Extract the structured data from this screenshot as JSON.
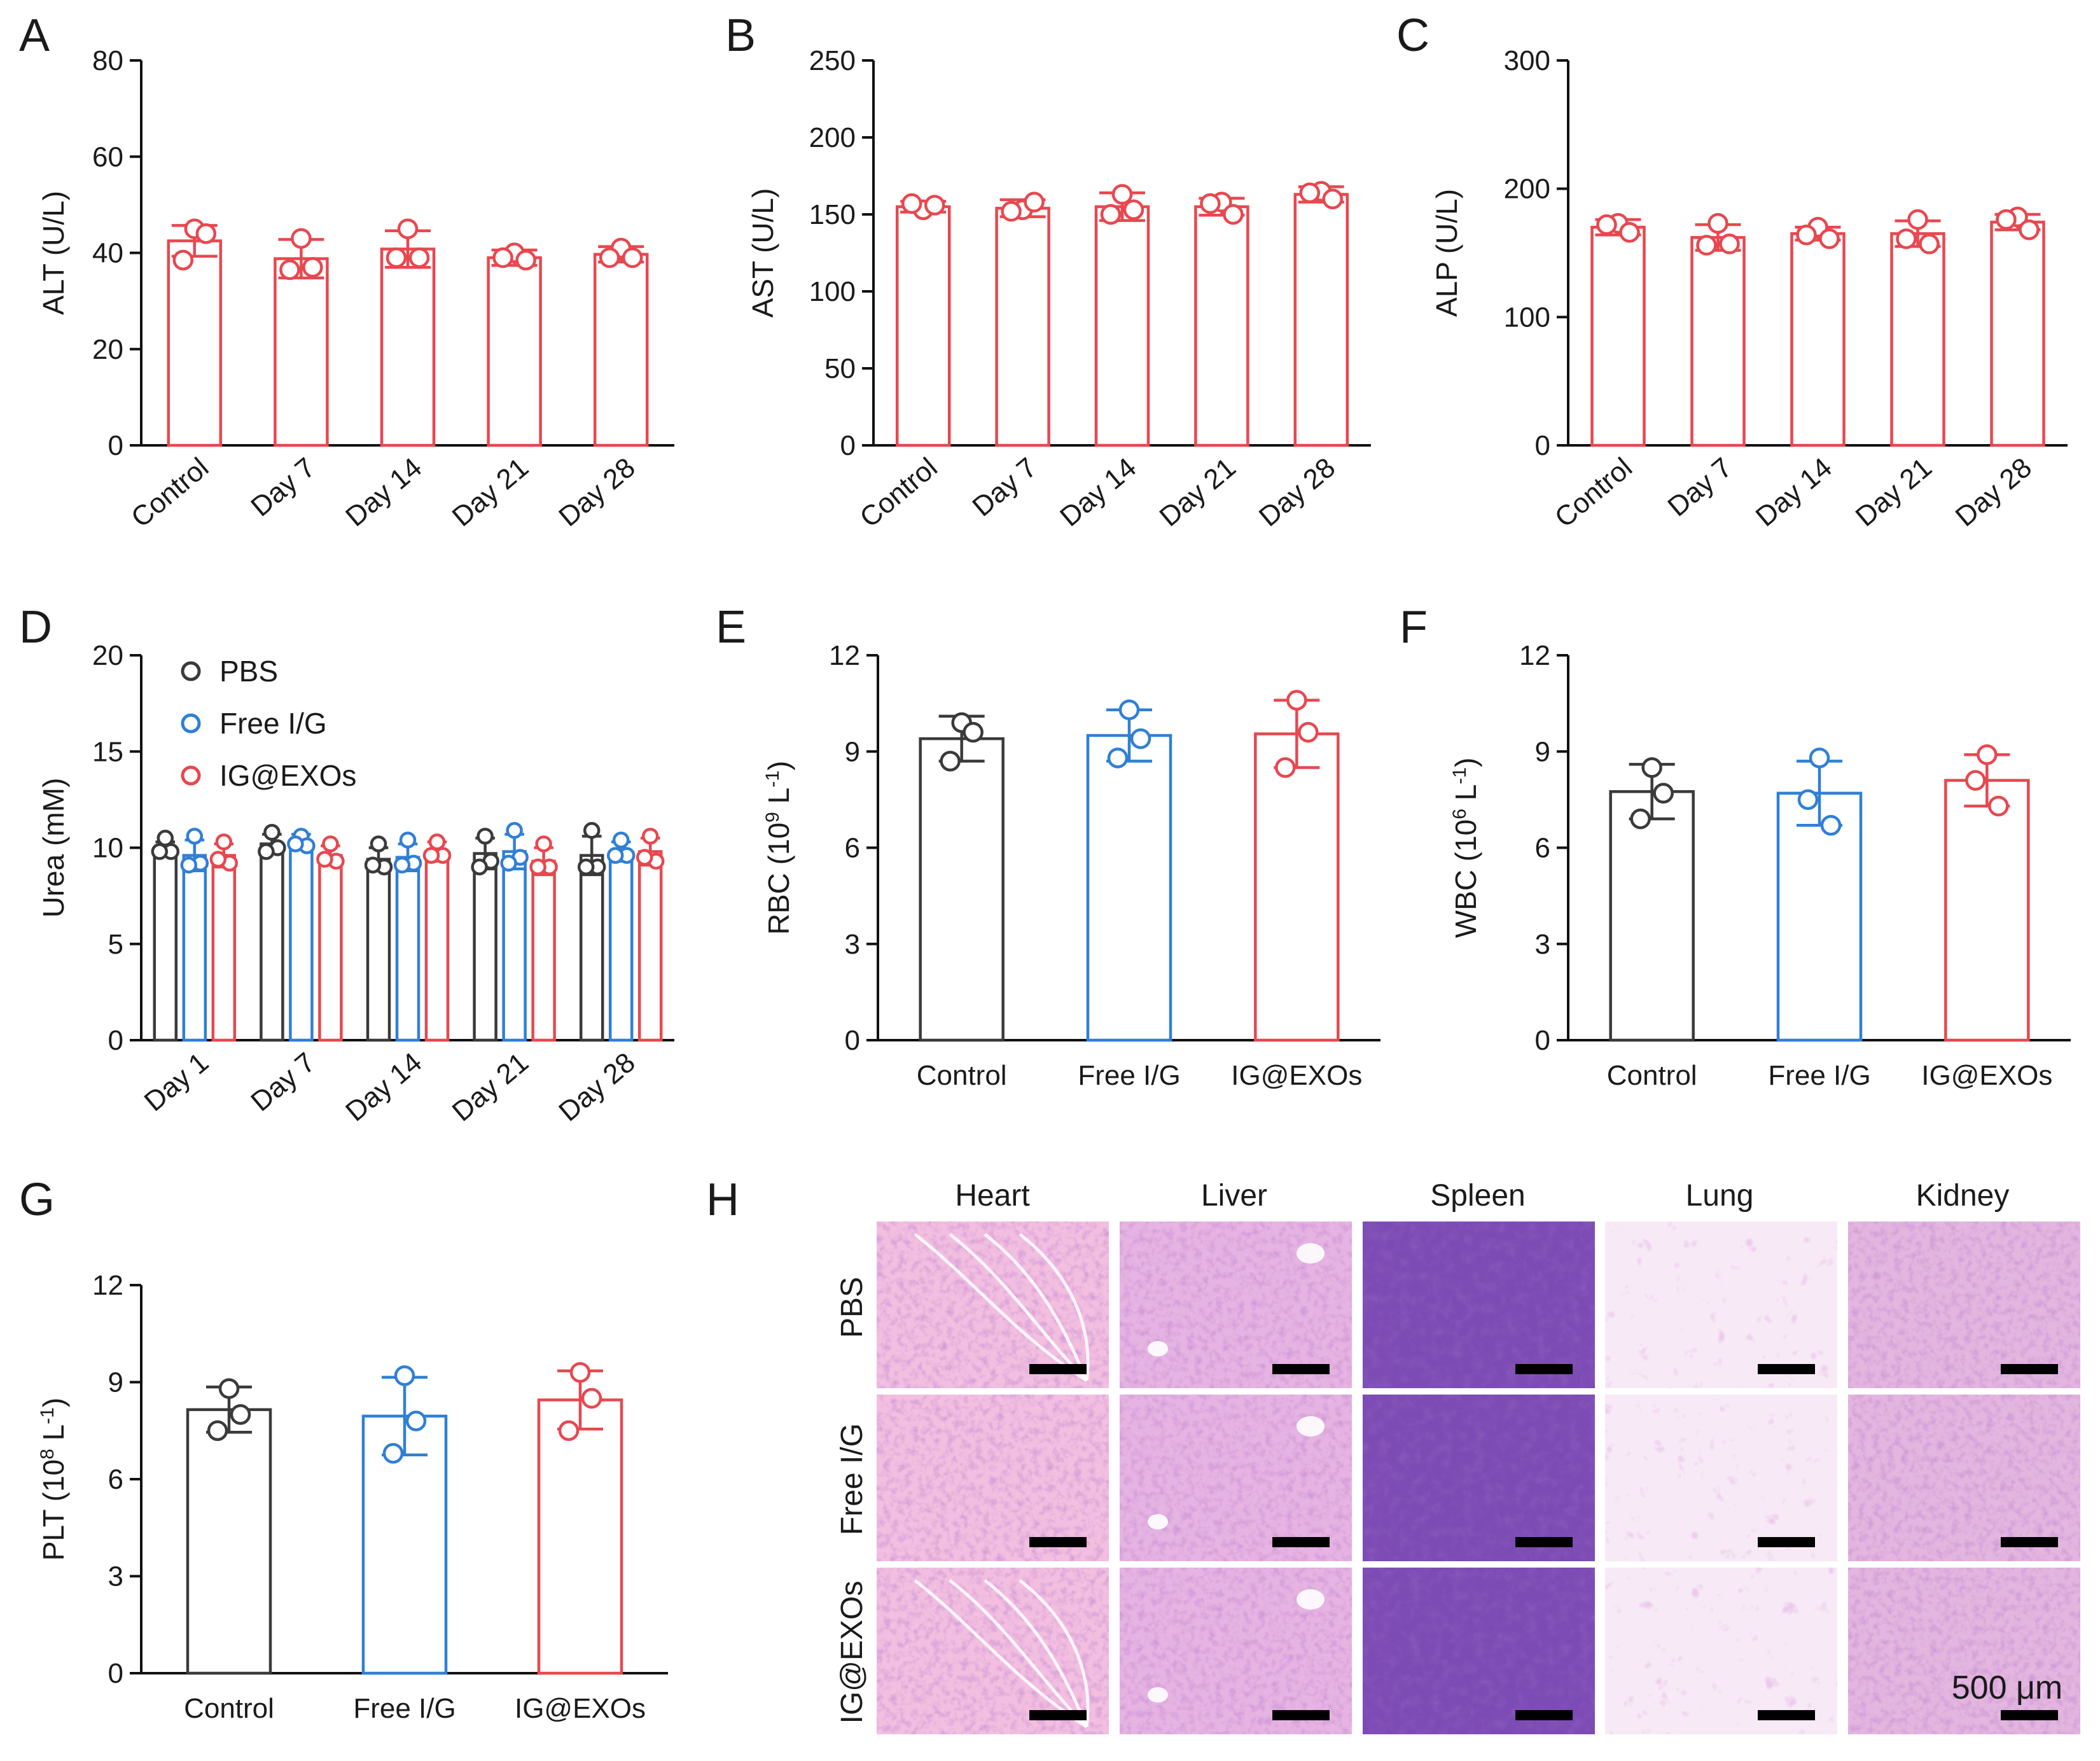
{
  "colors": {
    "black": "#3a3a3a",
    "blue": "#2f7fd6",
    "red": "#e8474f"
  },
  "chart_data": [
    {
      "panel": "A",
      "type": "bar",
      "ylabel": "ALT (U/L)",
      "ylim": [
        0,
        80
      ],
      "yticks": [
        0,
        20,
        40,
        60,
        80
      ],
      "categories": [
        "Control",
        "Day 7",
        "Day 14",
        "Day 21",
        "Day 28"
      ],
      "color": "red",
      "values": [
        42.5,
        38.8,
        40.8,
        39.0,
        39.7
      ],
      "sd": [
        3.2,
        4.0,
        3.8,
        1.6,
        1.6
      ],
      "points": [
        [
          45.0,
          44.0,
          38.5
        ],
        [
          43.0,
          37.0,
          36.5
        ],
        [
          45.0,
          39.0,
          39.0
        ],
        [
          40.0,
          38.5,
          39.0
        ],
        [
          41.0,
          39.0,
          39.0
        ]
      ]
    },
    {
      "panel": "B",
      "type": "bar",
      "ylabel": "AST (U/L)",
      "ylim": [
        0,
        250
      ],
      "yticks": [
        0,
        50,
        100,
        150,
        200,
        250
      ],
      "categories": [
        "Control",
        "Day 7",
        "Day 14",
        "Day 21",
        "Day 28"
      ],
      "color": "red",
      "values": [
        155,
        154,
        155,
        155,
        163
      ],
      "sd": [
        3.5,
        5.5,
        9.0,
        5.5,
        5.0
      ],
      "points": [
        [
          153,
          156,
          157
        ],
        [
          153,
          158,
          152
        ],
        [
          163,
          153,
          150
        ],
        [
          158,
          150,
          157
        ],
        [
          165,
          160,
          164
        ]
      ]
    },
    {
      "panel": "C",
      "type": "bar",
      "ylabel": "ALP (U/L)",
      "ylim": [
        0,
        300
      ],
      "yticks": [
        0,
        100,
        200,
        300
      ],
      "categories": [
        "Control",
        "Day 7",
        "Day 14",
        "Day 21",
        "Day 28"
      ],
      "color": "red",
      "values": [
        170,
        162,
        165,
        165,
        174
      ],
      "sd": [
        6.0,
        10.0,
        5.0,
        10.0,
        6.0
      ],
      "points": [
        [
          173,
          166,
          172
        ],
        [
          173,
          157,
          156
        ],
        [
          170,
          161,
          164
        ],
        [
          176,
          157,
          161
        ],
        [
          178,
          168,
          176
        ]
      ]
    },
    {
      "panel": "D",
      "type": "grouped-bar",
      "ylabel": "Urea (mM)",
      "ylim": [
        0,
        20
      ],
      "yticks": [
        0,
        5,
        10,
        15,
        20
      ],
      "categories": [
        "Day 1",
        "Day 7",
        "Day 14",
        "Day 21",
        "Day 28"
      ],
      "legend": [
        "PBS",
        "Free I/G",
        "IG@EXOs"
      ],
      "series": [
        {
          "name": "PBS",
          "color": "black",
          "values": [
            10.0,
            10.2,
            9.4,
            9.7,
            9.6
          ],
          "sd": [
            0.3,
            0.5,
            0.6,
            0.8,
            1.0
          ],
          "points": [
            [
              10.5,
              9.8,
              9.8
            ],
            [
              10.8,
              10.0,
              9.8
            ],
            [
              10.2,
              9.0,
              9.1
            ],
            [
              10.6,
              9.3,
              9.0
            ],
            [
              10.9,
              9.0,
              9.0
            ]
          ]
        },
        {
          "name": "Free I/G",
          "color": "blue",
          "values": [
            9.6,
            10.3,
            9.5,
            9.8,
            9.8
          ],
          "sd": [
            0.8,
            0.4,
            0.7,
            0.9,
            0.5
          ],
          "points": [
            [
              10.6,
              9.2,
              9.1
            ],
            [
              10.6,
              10.1,
              10.2
            ],
            [
              10.4,
              9.2,
              9.1
            ],
            [
              10.9,
              9.5,
              9.2
            ],
            [
              10.4,
              9.6,
              9.6
            ]
          ]
        },
        {
          "name": "IG@EXOs",
          "color": "red",
          "values": [
            9.6,
            9.6,
            9.8,
            9.3,
            9.8
          ],
          "sd": [
            0.6,
            0.5,
            0.5,
            0.7,
            0.7
          ],
          "points": [
            [
              10.3,
              9.2,
              9.4
            ],
            [
              10.2,
              9.3,
              9.4
            ],
            [
              10.3,
              9.6,
              9.6
            ],
            [
              10.2,
              9.0,
              9.0
            ],
            [
              10.6,
              9.3,
              9.5
            ]
          ]
        }
      ]
    },
    {
      "panel": "E",
      "type": "bar",
      "ylabel": "RBC (10⁹ L⁻¹)",
      "ylim": [
        0,
        12
      ],
      "yticks": [
        0,
        3,
        6,
        9,
        12
      ],
      "categories": [
        "Control",
        "Free I/G",
        "IG@EXOs"
      ],
      "colors": [
        "black",
        "blue",
        "red"
      ],
      "values": [
        9.4,
        9.5,
        9.55
      ],
      "sd": [
        0.7,
        0.8,
        1.05
      ],
      "points": [
        [
          9.9,
          9.6,
          8.7
        ],
        [
          10.3,
          9.4,
          8.8
        ],
        [
          10.6,
          9.6,
          8.5
        ]
      ]
    },
    {
      "panel": "F",
      "type": "bar",
      "ylabel": "WBC (10⁶ L⁻¹)",
      "ylim": [
        0,
        12
      ],
      "yticks": [
        0,
        3,
        6,
        9,
        12
      ],
      "categories": [
        "Control",
        "Free I/G",
        "IG@EXOs"
      ],
      "colors": [
        "black",
        "blue",
        "red"
      ],
      "values": [
        7.75,
        7.7,
        8.1
      ],
      "sd": [
        0.85,
        1.0,
        0.8
      ],
      "points": [
        [
          8.5,
          7.7,
          6.9
        ],
        [
          8.8,
          6.7,
          7.5
        ],
        [
          8.9,
          7.3,
          8.1
        ]
      ]
    },
    {
      "panel": "G",
      "type": "bar",
      "ylabel": "PLT (10⁸ L⁻¹)",
      "ylim": [
        0,
        12
      ],
      "yticks": [
        0,
        3,
        6,
        9,
        12
      ],
      "categories": [
        "Control",
        "Free I/G",
        "IG@EXOs"
      ],
      "colors": [
        "black",
        "blue",
        "red"
      ],
      "values": [
        8.15,
        7.95,
        8.45
      ],
      "sd": [
        0.7,
        1.2,
        0.9
      ],
      "points": [
        [
          8.8,
          8.0,
          7.5
        ],
        [
          9.2,
          7.8,
          6.8
        ],
        [
          9.3,
          8.5,
          7.5
        ]
      ]
    }
  ],
  "histology": {
    "panel": "H",
    "organs": [
      "Heart",
      "Liver",
      "Spleen",
      "Lung",
      "Kidney"
    ],
    "groups": [
      "PBS",
      "Free I/G",
      "IG@EXOs"
    ],
    "scale_bar": "500 μm",
    "tones": {
      "Heart": "#f3bfe0",
      "Liver": "#e6b4e2",
      "Spleen": "#7c4bb4",
      "Lung": "#f7eaf6",
      "Kidney": "#e3b6df"
    }
  }
}
